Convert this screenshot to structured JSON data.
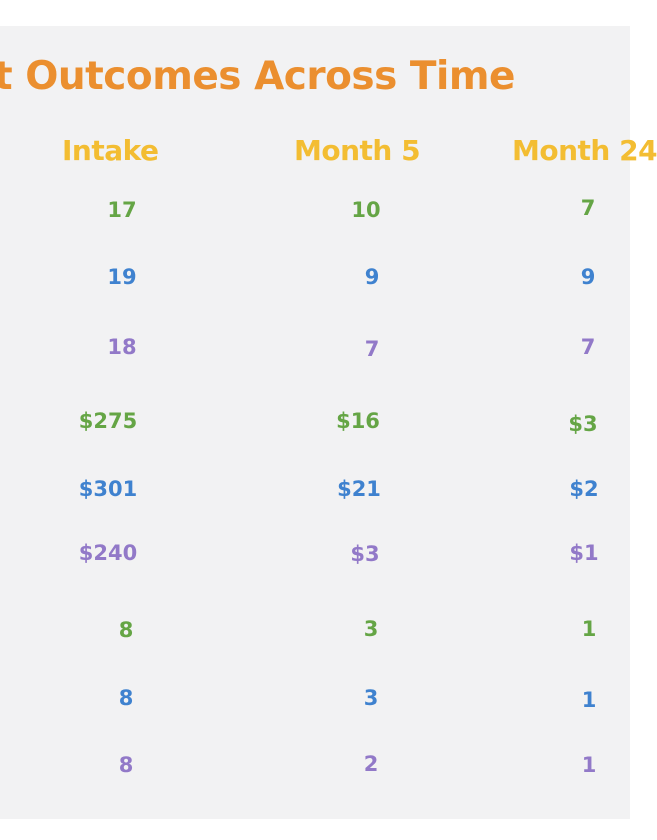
{
  "title": "t Outcomes Across Time",
  "columns": [
    "Intake",
    "Month 5",
    "Month 24"
  ],
  "colors": {
    "title": "#eb8f2f",
    "header": "#f3bd32",
    "green": "#65a545",
    "blue": "#3f82cf",
    "purple": "#9279c8",
    "background": "#f2f2f3"
  },
  "rows": [
    {
      "color": "green",
      "values": [
        "17",
        "10",
        "7"
      ]
    },
    {
      "color": "blue",
      "values": [
        "19",
        "9",
        "9"
      ]
    },
    {
      "color": "purple",
      "values": [
        "18",
        "7",
        "7"
      ]
    },
    {
      "color": "green",
      "values": [
        "$275",
        "$16",
        "$3"
      ]
    },
    {
      "color": "blue",
      "values": [
        "$301",
        "$21",
        "$2"
      ]
    },
    {
      "color": "purple",
      "values": [
        "$240",
        "$3",
        "$1"
      ]
    },
    {
      "color": "green",
      "values": [
        "8",
        "3",
        "1"
      ]
    },
    {
      "color": "blue",
      "values": [
        "8",
        "3",
        "1"
      ]
    },
    {
      "color": "purple",
      "values": [
        "8",
        "2",
        "1"
      ]
    }
  ]
}
